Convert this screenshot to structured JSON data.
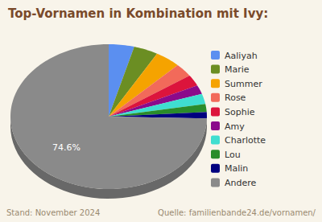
{
  "chart_data": {
    "type": "pie",
    "title": "Top-Vornamen in Kombination mit Ivy:",
    "categories": [
      "Aaliyah",
      "Marie",
      "Summer",
      "Rose",
      "Sophie",
      "Amy",
      "Charlotte",
      "Lou",
      "Malin",
      "Andere"
    ],
    "values": [
      4.2,
      4.0,
      4.2,
      3.0,
      2.5,
      2.0,
      2.3,
      1.8,
      1.4,
      74.6
    ],
    "value_labels": [
      null,
      null,
      null,
      null,
      null,
      null,
      null,
      null,
      null,
      "74.6%"
    ],
    "data_labels": true,
    "colors": [
      "#5b8ff0",
      "#6b8e23",
      "#f5a300",
      "#f26a5a",
      "#dc143c",
      "#8b0a8b",
      "#3fded0",
      "#2a8c2a",
      "#00007f",
      "#8a8a8a"
    ],
    "legend": "right",
    "footer_left": "Stand: November 2024",
    "footer_right": "Quelle: familienbande24.de/vornamen/"
  }
}
